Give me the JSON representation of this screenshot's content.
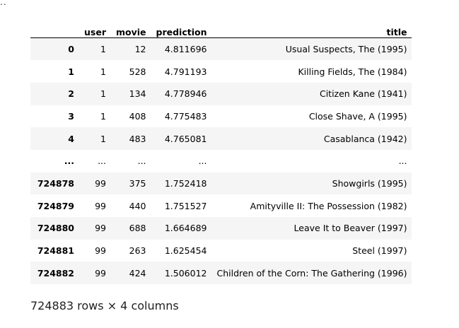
{
  "prompt_dots": "..",
  "dataframe": {
    "columns": [
      "",
      "user",
      "movie",
      "prediction",
      "title"
    ],
    "rows": [
      {
        "index": "0",
        "user": "1",
        "movie": "12",
        "prediction": "4.811696",
        "title": "Usual Suspects, The (1995)"
      },
      {
        "index": "1",
        "user": "1",
        "movie": "528",
        "prediction": "4.791193",
        "title": "Killing Fields, The (1984)"
      },
      {
        "index": "2",
        "user": "1",
        "movie": "134",
        "prediction": "4.778946",
        "title": "Citizen Kane (1941)"
      },
      {
        "index": "3",
        "user": "1",
        "movie": "408",
        "prediction": "4.775483",
        "title": "Close Shave, A (1995)"
      },
      {
        "index": "4",
        "user": "1",
        "movie": "483",
        "prediction": "4.765081",
        "title": "Casablanca (1942)"
      },
      {
        "index": "...",
        "user": "...",
        "movie": "...",
        "prediction": "...",
        "title": "..."
      },
      {
        "index": "724878",
        "user": "99",
        "movie": "375",
        "prediction": "1.752418",
        "title": "Showgirls (1995)"
      },
      {
        "index": "724879",
        "user": "99",
        "movie": "440",
        "prediction": "1.751527",
        "title": "Amityville II: The Possession (1982)"
      },
      {
        "index": "724880",
        "user": "99",
        "movie": "688",
        "prediction": "1.664689",
        "title": "Leave It to Beaver (1997)"
      },
      {
        "index": "724881",
        "user": "99",
        "movie": "263",
        "prediction": "1.625454",
        "title": "Steel (1997)"
      },
      {
        "index": "724882",
        "user": "99",
        "movie": "424",
        "prediction": "1.506012",
        "title": "Children of the Corn: The Gathering (1996)"
      }
    ]
  },
  "shape_caption": "724883 rows × 4 columns"
}
